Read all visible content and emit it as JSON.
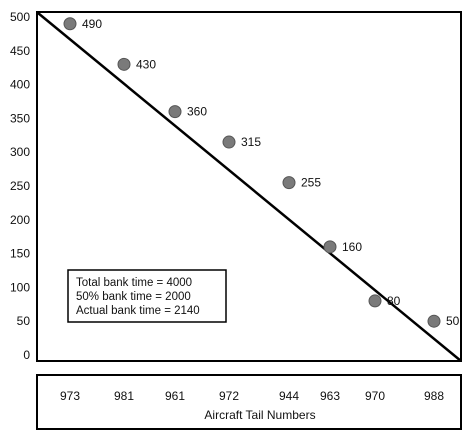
{
  "chart_data": {
    "type": "scatter",
    "title": "",
    "xlabel": "Aircraft Tail Numbers",
    "ylabel": "",
    "ylim": [
      0,
      500
    ],
    "yticks": [
      0,
      50,
      100,
      150,
      200,
      250,
      300,
      350,
      400,
      450,
      500
    ],
    "categories": [
      "973",
      "981",
      "961",
      "972",
      "944",
      "963",
      "970",
      "988"
    ],
    "values": [
      490,
      430,
      360,
      315,
      255,
      160,
      80,
      50
    ],
    "data_labels": [
      "490",
      "430",
      "360",
      "315",
      "255",
      "160",
      "80",
      "50"
    ],
    "trend_line": {
      "from": 500,
      "to": 0
    },
    "grid": false,
    "annotation": [
      "Total bank time = 4000",
      "50% bank time = 2000",
      "Actual bank time = 2140"
    ],
    "point_color": "#7a7a7a",
    "point_stroke": "#555555",
    "line_color": "#000000"
  }
}
